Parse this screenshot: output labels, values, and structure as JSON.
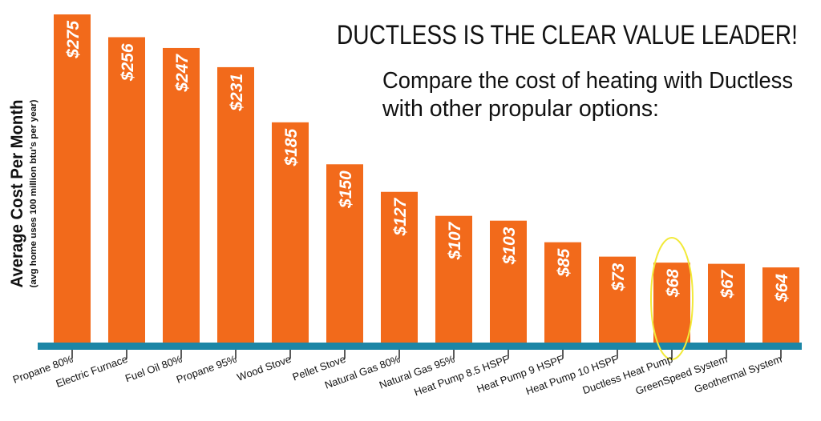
{
  "chart_data": {
    "type": "bar",
    "title": "DUCTLESS IS THE CLEAR VALUE LEADER!",
    "subtitle_lines": [
      "Compare the cost of heating with Ductless",
      "with other propular options:"
    ],
    "ylabel": "Average Cost Per Month",
    "ylabel_note": "(avg home uses 100 million btu's per year)",
    "xlabel": "",
    "ylim": [
      0,
      280
    ],
    "grid": false,
    "legend": "none",
    "bar_color": "#f26a1b",
    "baseline_color": "#1c86a6",
    "highlight_color": "#f2ea3a",
    "highlight_category": "Ductless Heat Pump",
    "categories": [
      "Propane 80%",
      "Electric Furnace",
      "Fuel Oil 80%",
      "Propane 95%",
      "Wood Stove",
      "Pellet Stove",
      "Natural Gas 80%",
      "Natural Gas 95%",
      "Heat Pump 8.5 HSPF",
      "Heat Pump 9 HSPF",
      "Heat Pump 10 HSPF",
      "Ductless Heat Pump",
      "GreenSpeed System",
      "Geothermal System"
    ],
    "values": [
      275,
      256,
      247,
      231,
      185,
      150,
      127,
      107,
      103,
      85,
      73,
      68,
      67,
      64
    ],
    "value_labels": [
      "$275",
      "$256",
      "$247",
      "$231",
      "$185",
      "$150",
      "$127",
      "$107",
      "$103",
      "$85",
      "$73",
      "$68",
      "$67",
      "$64"
    ]
  }
}
